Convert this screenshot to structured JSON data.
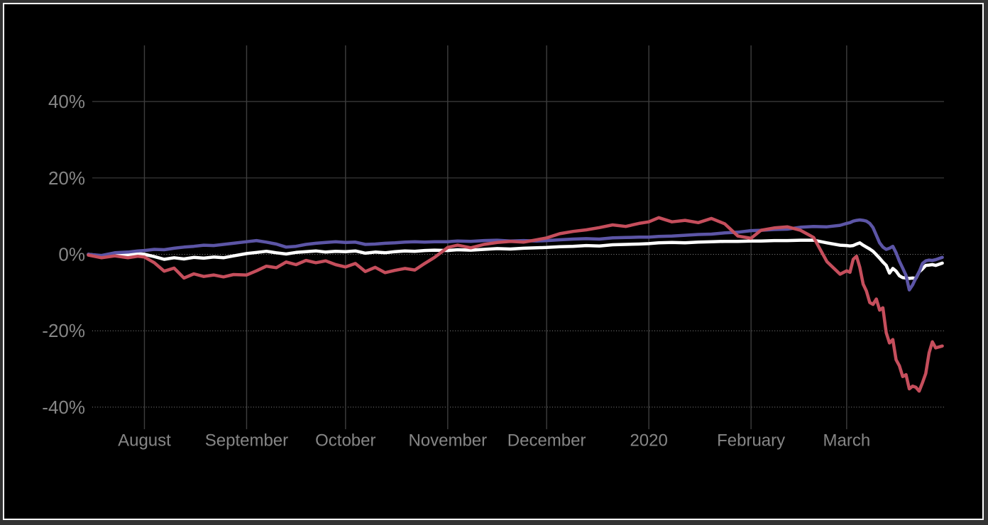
{
  "page": {
    "background": "#000000",
    "frame_outer_color": "#333333",
    "frame_border_color": "#ffffff"
  },
  "chart_data": {
    "type": "line",
    "title": "",
    "legend": "none",
    "grid": "on",
    "x_axis": {
      "unit": "days since first data point (ticks mark month starts)",
      "ticks": [
        {
          "label": "August",
          "day": 17
        },
        {
          "label": "September",
          "day": 48
        },
        {
          "label": "October",
          "day": 78
        },
        {
          "label": "November",
          "day": 109
        },
        {
          "label": "December",
          "day": 139
        },
        {
          "label": "2020",
          "day": 170
        },
        {
          "label": "February",
          "day": 201
        },
        {
          "label": "March",
          "day": 230
        }
      ]
    },
    "y_axis": {
      "unit": "percent change",
      "range": [
        -46,
        55
      ],
      "ticks": [
        {
          "label": "40%",
          "value": 40
        },
        {
          "label": "20%",
          "value": 20
        },
        {
          "label": "0%",
          "value": 0
        },
        {
          "label": "-20%",
          "value": -20
        },
        {
          "label": "-40%",
          "value": -40
        }
      ]
    },
    "x_days": [
      0,
      4,
      8,
      12,
      15,
      17,
      20,
      23,
      26,
      29,
      32,
      35,
      38,
      41,
      44,
      48,
      51,
      54,
      57,
      60,
      63,
      66,
      69,
      72,
      75,
      78,
      81,
      84,
      87,
      90,
      93,
      96,
      99,
      102,
      105,
      109,
      112,
      116,
      120,
      124,
      128,
      132,
      136,
      139,
      143,
      147,
      151,
      155,
      159,
      163,
      167,
      170,
      173,
      177,
      181,
      185,
      189,
      193,
      197,
      201,
      204,
      208,
      212,
      216,
      220,
      224,
      228,
      230,
      231,
      232,
      233,
      234,
      235,
      236,
      237,
      238,
      239,
      240,
      241,
      242,
      243,
      244,
      245,
      246,
      247,
      248,
      249,
      250,
      251,
      252,
      253,
      254,
      255,
      256,
      257,
      259
    ],
    "series": [
      {
        "name": "white",
        "color": "#ffffff",
        "values": [
          0.0,
          -0.4,
          0.1,
          -0.2,
          0.2,
          0.0,
          -0.6,
          -1.3,
          -0.9,
          -1.2,
          -0.8,
          -1.0,
          -0.7,
          -0.9,
          -0.4,
          0.2,
          0.5,
          0.8,
          0.4,
          0.1,
          0.5,
          0.7,
          0.9,
          0.6,
          0.8,
          0.7,
          0.9,
          0.3,
          0.6,
          0.4,
          0.7,
          0.9,
          0.8,
          1.0,
          1.1,
          1.0,
          1.2,
          1.1,
          1.3,
          1.5,
          1.4,
          1.6,
          1.7,
          1.8,
          2.0,
          2.1,
          2.3,
          2.2,
          2.5,
          2.6,
          2.7,
          2.8,
          3.0,
          3.1,
          3.0,
          3.2,
          3.3,
          3.4,
          3.4,
          3.5,
          3.5,
          3.6,
          3.6,
          3.7,
          3.7,
          3.0,
          2.4,
          2.3,
          2.2,
          2.3,
          2.7,
          3.0,
          2.4,
          1.9,
          1.4,
          0.8,
          -0.1,
          -1.0,
          -2.0,
          -2.9,
          -4.9,
          -3.7,
          -4.4,
          -5.6,
          -6.1,
          -6.2,
          -6.3,
          -6.2,
          -6.3,
          -4.6,
          -3.8,
          -2.9,
          -2.8,
          -2.7,
          -2.9,
          -2.3
        ]
      },
      {
        "name": "purple",
        "color": "#5c55a6",
        "values": [
          0.0,
          -0.3,
          0.4,
          0.6,
          0.9,
          1.0,
          1.3,
          1.2,
          1.6,
          1.9,
          2.1,
          2.4,
          2.3,
          2.6,
          2.9,
          3.3,
          3.6,
          3.2,
          2.7,
          1.9,
          2.1,
          2.6,
          2.9,
          3.1,
          3.3,
          3.1,
          3.2,
          2.6,
          2.7,
          2.9,
          3.0,
          3.2,
          3.3,
          3.2,
          3.3,
          3.3,
          3.5,
          3.4,
          3.6,
          3.7,
          3.5,
          3.6,
          3.5,
          3.6,
          3.8,
          4.0,
          4.1,
          4.0,
          4.3,
          4.4,
          4.5,
          4.5,
          4.7,
          4.8,
          5.0,
          5.2,
          5.3,
          5.6,
          5.8,
          6.2,
          6.3,
          6.5,
          6.6,
          7.1,
          7.3,
          7.2,
          7.6,
          8.1,
          8.3,
          8.7,
          8.9,
          9.0,
          8.9,
          8.7,
          8.1,
          7.0,
          5.0,
          3.0,
          1.9,
          1.3,
          1.6,
          2.1,
          0.4,
          -1.8,
          -3.6,
          -5.5,
          -9.3,
          -8.0,
          -6.2,
          -4.6,
          -2.4,
          -1.7,
          -1.5,
          -1.6,
          -1.4,
          -0.8
        ]
      },
      {
        "name": "red",
        "color": "#c54e5c",
        "values": [
          -0.2,
          -0.9,
          -0.4,
          -0.9,
          -0.5,
          -0.7,
          -2.2,
          -4.4,
          -3.6,
          -6.2,
          -5.1,
          -5.8,
          -5.4,
          -5.9,
          -5.3,
          -5.4,
          -4.3,
          -3.1,
          -3.5,
          -2.0,
          -2.7,
          -1.6,
          -2.2,
          -1.7,
          -2.7,
          -3.3,
          -2.4,
          -4.5,
          -3.4,
          -4.8,
          -4.2,
          -3.7,
          -4.1,
          -2.4,
          -0.8,
          1.8,
          2.4,
          1.7,
          2.6,
          3.1,
          3.4,
          3.2,
          3.8,
          4.3,
          5.4,
          6.0,
          6.4,
          7.0,
          7.7,
          7.3,
          8.1,
          8.5,
          9.6,
          8.5,
          8.9,
          8.3,
          9.4,
          8.0,
          4.8,
          4.2,
          6.3,
          6.9,
          7.2,
          6.3,
          4.4,
          -1.9,
          -5.2,
          -4.3,
          -4.7,
          -1.3,
          -0.5,
          -3.4,
          -7.8,
          -9.6,
          -12.6,
          -13.1,
          -11.7,
          -14.6,
          -14.0,
          -20.5,
          -23.2,
          -22.3,
          -27.6,
          -29.2,
          -32.0,
          -31.5,
          -35.2,
          -34.5,
          -34.8,
          -35.8,
          -33.6,
          -31.2,
          -25.8,
          -22.9,
          -24.5,
          -24.0
        ]
      }
    ],
    "style": {
      "background": "#000000",
      "grid_solid_color": "#3e3e3e",
      "grid_dotted_color": "#8a8a8a",
      "axis_label_color": "#868686",
      "line_width": 4.5,
      "note_gridline_style": "positive y gridlines solid, zero and negative y gridlines dotted"
    }
  }
}
